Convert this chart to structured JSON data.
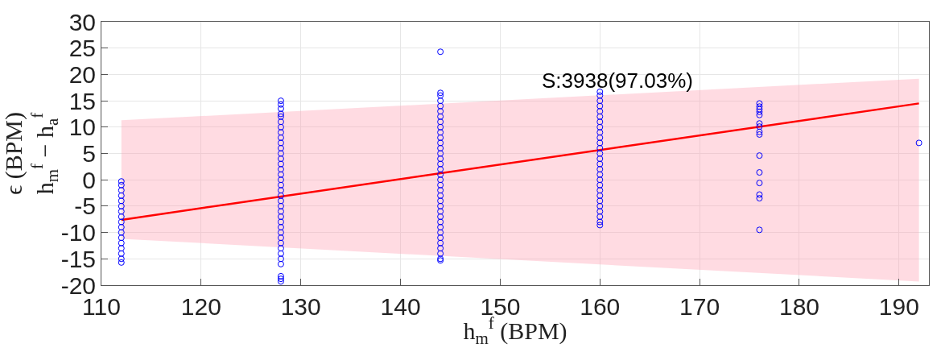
{
  "chart_data": {
    "type": "scatter",
    "xlabel": "h$_{m}$$^{f}$ (BPM)",
    "ylabel": "ϵ (BPM)\nh$_{m}$$^{f}$ − h$_{a}$$^{f}$",
    "annotations": [
      "S:3938(97.03%)"
    ],
    "xlim": [
      110,
      193
    ],
    "xticks": [
      110,
      120,
      130,
      140,
      150,
      160,
      170,
      180,
      190
    ],
    "ylim": [
      -20,
      30
    ],
    "yticks": [
      -20,
      -15,
      -10,
      -5,
      0,
      5,
      10,
      15,
      20,
      25,
      30
    ],
    "grid": true,
    "marker": "circle",
    "series": [
      {
        "type": "line",
        "marker": "none",
        "color": "#ff0000",
        "x": [
          112,
          192
        ],
        "values": [
          -7.6,
          14.5
        ],
        "lower": [
          -11.2,
          -19.3
        ],
        "upper": [
          11.3,
          19.2
        ]
      },
      {
        "color": "#0000ff",
        "x": [
          112,
          112,
          112,
          112,
          112,
          112,
          112,
          112,
          112,
          112,
          112,
          112,
          112,
          112,
          112,
          112,
          112,
          128,
          128,
          128,
          128,
          128,
          128,
          128,
          128,
          128,
          128,
          128,
          128,
          128,
          128,
          128,
          128,
          128,
          128,
          128,
          128,
          128,
          128,
          128,
          128,
          128,
          128,
          128,
          128,
          128,
          128,
          128,
          128,
          128,
          128,
          128,
          128,
          144,
          144,
          144,
          144,
          144,
          144,
          144,
          144,
          144,
          144,
          144,
          144,
          144,
          144,
          144,
          144,
          144,
          144,
          144,
          144,
          144,
          144,
          144,
          144,
          144,
          144,
          144,
          144,
          144,
          144,
          144,
          144,
          144,
          144,
          144,
          160,
          160,
          160,
          160,
          160,
          160,
          160,
          160,
          160,
          160,
          160,
          160,
          160,
          160,
          160,
          160,
          160,
          160,
          160,
          160,
          160,
          160,
          160,
          160,
          160,
          160,
          160,
          176,
          176,
          176,
          176,
          176,
          176,
          176,
          176,
          176,
          176,
          176,
          176,
          176,
          176,
          176,
          192
        ],
        "values": [
          -15.7,
          -15,
          -14,
          -13,
          -12,
          -11,
          -10,
          -9,
          -8,
          -7,
          -6,
          -5,
          -4,
          -3,
          -2,
          -1,
          -0.3,
          -19.3,
          -18.8,
          -18.3,
          -16,
          -15,
          -14,
          -13,
          -12,
          -11,
          -10,
          -9,
          -8,
          -7,
          -6,
          -5,
          -4,
          -3,
          -2,
          -1,
          0,
          1,
          2,
          3,
          4,
          5,
          6,
          7,
          8,
          9,
          10,
          11,
          12,
          12.5,
          13.5,
          14.3,
          15,
          -15.3,
          -15,
          -14,
          -13,
          -12,
          -11,
          -10,
          -9,
          -8,
          -7,
          -6,
          -5,
          -4,
          -3,
          -2,
          -1,
          0,
          1,
          2,
          3,
          4,
          5,
          6,
          7,
          8,
          9,
          10,
          11,
          12,
          13,
          14,
          15,
          16,
          16.5,
          24.3,
          -8.6,
          -8,
          -7,
          -6,
          -5,
          -4,
          -3,
          -2,
          -1,
          0,
          1,
          2,
          3,
          4,
          5,
          6,
          7,
          8,
          9,
          10,
          11,
          12,
          13,
          14,
          15,
          16,
          16.7,
          14.5,
          13.9,
          13.4,
          12.9,
          12.3,
          10.7,
          10.1,
          9.1,
          8.6,
          4.6,
          1.4,
          -0.6,
          -2.8,
          -3.5,
          -9.5,
          7.0
        ]
      }
    ]
  }
}
